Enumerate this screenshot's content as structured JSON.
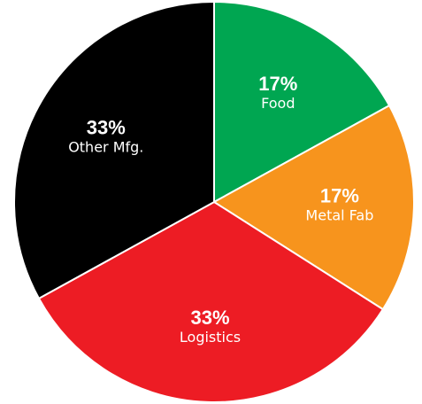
{
  "chart_data": {
    "type": "pie",
    "start_angle_deg": 0,
    "direction": "clockwise",
    "slices": [
      {
        "label": "Food",
        "value": 17,
        "value_label": "17%",
        "color": "#00a651"
      },
      {
        "label": "Metal Fab",
        "value": 17,
        "value_label": "17%",
        "color": "#f7941d"
      },
      {
        "label": "Logistics",
        "value": 33,
        "value_label": "33%",
        "color": "#ed1c24"
      },
      {
        "label": "Other Mfg.",
        "value": 33,
        "value_label": "33%",
        "color": "#000000"
      }
    ],
    "slice_border_color": "#ffffff"
  }
}
